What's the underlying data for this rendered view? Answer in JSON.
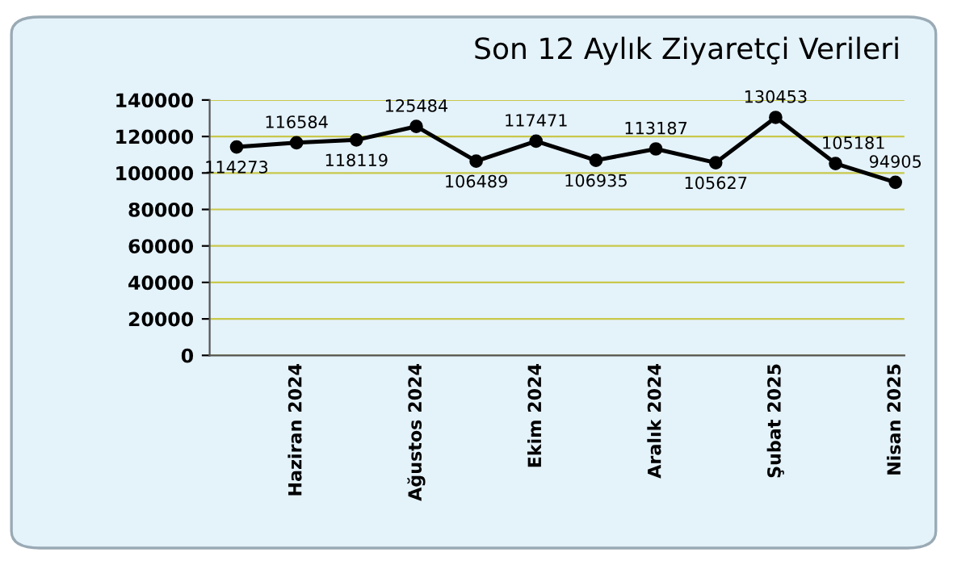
{
  "chart_data": {
    "type": "line",
    "title": "Son 12 Aylık Ziyaretçi Verileri",
    "categories": [
      null,
      "Haziran 2024",
      null,
      "Ağustos 2024",
      null,
      "Ekim 2024",
      null,
      "Aralık 2024",
      null,
      "Şubat 2025",
      null,
      "Nisan 2025"
    ],
    "series": [
      {
        "color": "#000000",
        "values": [
          114273,
          116584,
          118119,
          125484,
          106489,
          117471,
          106935,
          113187,
          105627,
          130453,
          105181,
          94905
        ]
      }
    ],
    "ylim": [
      0,
      140000
    ],
    "yticks": [
      0,
      20000,
      40000,
      60000,
      80000,
      100000,
      120000,
      140000
    ],
    "grid": "y",
    "marker": "circle",
    "line_style": "solid",
    "data_labels": true,
    "legend": false
  }
}
